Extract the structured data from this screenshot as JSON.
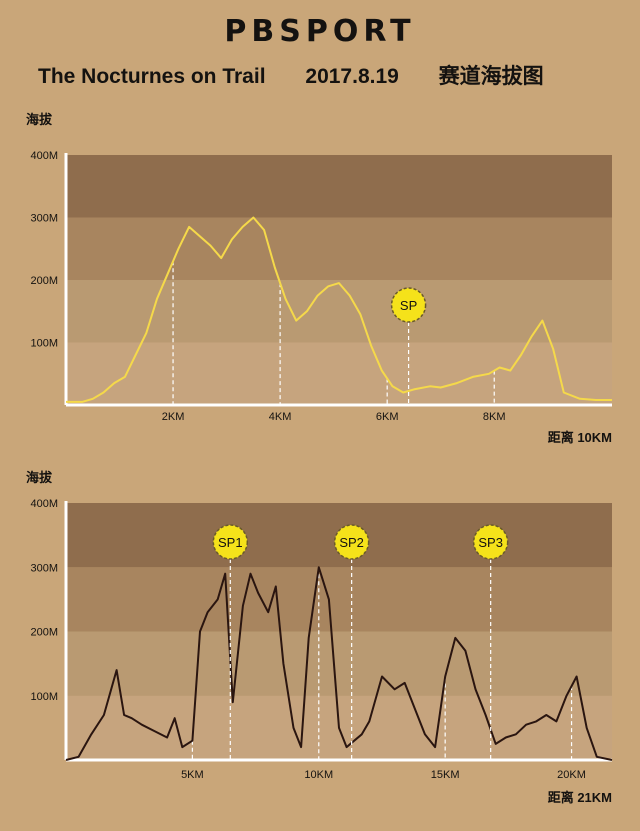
{
  "header": {
    "brand": "PBSPORT",
    "event": "The Nocturnes on Trail",
    "date": "2017.8.19",
    "caption": "赛道海拔图"
  },
  "colors": {
    "background": "#c9a679",
    "band_dark": "#8f6d4d",
    "band_mid": "#a8855f",
    "band_light": "#b99a72",
    "band_lightest": "#c6a47e",
    "line_10km": "#f5d94a",
    "line_21km": "#2a1510",
    "marker_fill": "#f5e21a"
  },
  "chart_data": [
    {
      "type": "line",
      "title": "",
      "ylabel": "海拔",
      "xlabel": "距离",
      "distance_label": "10KM",
      "ylim": [
        0,
        400
      ],
      "xlim": [
        0,
        10.2
      ],
      "y_ticks": [
        "100M",
        "200M",
        "300M",
        "400M"
      ],
      "x_ticks": [
        {
          "value": 2,
          "label": "2KM"
        },
        {
          "value": 4,
          "label": "4KM"
        },
        {
          "value": 6,
          "label": "6KM"
        },
        {
          "value": 8,
          "label": "8KM"
        }
      ],
      "markers": [
        {
          "label": "SP",
          "x": 6.4
        }
      ],
      "series": [
        {
          "x": [
            0,
            0.3,
            0.5,
            0.7,
            0.9,
            1.1,
            1.3,
            1.5,
            1.7,
            1.9,
            2.1,
            2.3,
            2.5,
            2.7,
            2.9,
            3.1,
            3.3,
            3.5,
            3.7,
            3.9,
            4.1,
            4.3,
            4.5,
            4.7,
            4.9,
            5.1,
            5.3,
            5.5,
            5.7,
            5.9,
            6.1,
            6.3,
            6.5,
            6.8,
            7.0,
            7.3,
            7.6,
            7.9,
            8.1,
            8.3,
            8.5,
            8.7,
            8.9,
            9.1,
            9.3,
            9.6,
            9.9,
            10.2
          ],
          "y": [
            5,
            5,
            10,
            20,
            35,
            45,
            80,
            115,
            170,
            210,
            250,
            285,
            270,
            255,
            235,
            265,
            285,
            300,
            280,
            220,
            170,
            135,
            150,
            175,
            190,
            195,
            175,
            145,
            95,
            55,
            30,
            20,
            25,
            30,
            28,
            35,
            45,
            50,
            60,
            55,
            80,
            110,
            135,
            90,
            20,
            10,
            8,
            8
          ]
        }
      ]
    },
    {
      "type": "line",
      "title": "",
      "ylabel": "海拔",
      "xlabel": "距离",
      "distance_label": "21KM",
      "ylim": [
        0,
        400
      ],
      "xlim": [
        0,
        21.6
      ],
      "y_ticks": [
        "100M",
        "200M",
        "300M",
        "400M"
      ],
      "x_ticks": [
        {
          "value": 5,
          "label": "5KM"
        },
        {
          "value": 10,
          "label": "10KM"
        },
        {
          "value": 15,
          "label": "15KM"
        },
        {
          "value": 20,
          "label": "20KM"
        }
      ],
      "markers": [
        {
          "label": "SP1",
          "x": 6.5
        },
        {
          "label": "SP2",
          "x": 11.3
        },
        {
          "label": "SP3",
          "x": 16.8
        }
      ],
      "series": [
        {
          "x": [
            0,
            0.5,
            1.0,
            1.5,
            2.0,
            2.3,
            2.6,
            3.0,
            3.5,
            4.0,
            4.3,
            4.6,
            5.0,
            5.3,
            5.6,
            6.0,
            6.3,
            6.6,
            7.0,
            7.3,
            7.6,
            8.0,
            8.3,
            8.6,
            9.0,
            9.3,
            9.6,
            10.0,
            10.4,
            10.8,
            11.1,
            11.4,
            11.7,
            12.0,
            12.5,
            13.0,
            13.4,
            13.8,
            14.2,
            14.6,
            15.0,
            15.4,
            15.8,
            16.2,
            16.6,
            17.0,
            17.4,
            17.8,
            18.2,
            18.6,
            19.0,
            19.4,
            19.8,
            20.2,
            20.6,
            21.0,
            21.6
          ],
          "y": [
            0,
            5,
            40,
            70,
            140,
            70,
            65,
            55,
            45,
            35,
            65,
            20,
            30,
            200,
            230,
            250,
            290,
            90,
            240,
            290,
            260,
            230,
            270,
            150,
            50,
            20,
            190,
            300,
            250,
            50,
            20,
            30,
            40,
            60,
            130,
            110,
            120,
            80,
            40,
            20,
            130,
            190,
            170,
            110,
            70,
            25,
            35,
            40,
            55,
            60,
            70,
            60,
            100,
            130,
            50,
            5,
            0
          ]
        }
      ]
    }
  ]
}
